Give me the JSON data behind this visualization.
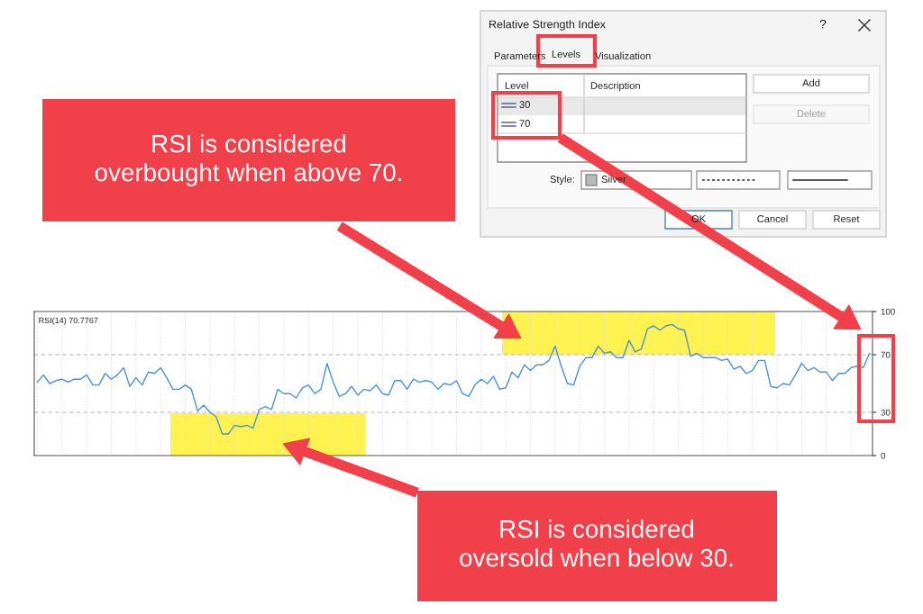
{
  "chart_data": {
    "type": "line",
    "title": "RSI(14) 70.7767",
    "categories": [
      null,
      null,
      null,
      null,
      null,
      null,
      null,
      null,
      null,
      null,
      null,
      null,
      null,
      null,
      null,
      null,
      null,
      null,
      null,
      null,
      null,
      null,
      null,
      null,
      null,
      null,
      null,
      null,
      null,
      null,
      null,
      null,
      null,
      null,
      null,
      null,
      null,
      null,
      null,
      null,
      null,
      null,
      null,
      null,
      null,
      null,
      null,
      null,
      null,
      null,
      null,
      null,
      null,
      null,
      null,
      null,
      null,
      null,
      null,
      null,
      null,
      null,
      null,
      null,
      null,
      null,
      null,
      null,
      null,
      null,
      null,
      null,
      null,
      null,
      null,
      null,
      null,
      null,
      null,
      null,
      null,
      null,
      null,
      null,
      null,
      null,
      null,
      null,
      null,
      null,
      null,
      null,
      null,
      null,
      null,
      null,
      null,
      null,
      null,
      null,
      null,
      null,
      null,
      null,
      null,
      null,
      null,
      null,
      null,
      null,
      null,
      null,
      null,
      null,
      null,
      null,
      null,
      null,
      null,
      null,
      null,
      null,
      null,
      null,
      null,
      null,
      null,
      null,
      null,
      null,
      null,
      null,
      null,
      null,
      null,
      null
    ],
    "series": [
      {
        "color": "#4a90d9",
        "values": [
          51,
          56,
          50,
          52,
          53,
          51,
          53,
          53,
          56,
          49,
          49,
          57,
          53,
          56,
          61,
          48,
          54,
          49,
          58,
          57,
          61,
          54,
          46,
          46,
          49,
          46,
          31,
          35,
          30,
          27,
          15,
          15,
          21,
          20,
          21,
          19,
          32,
          34,
          32,
          46,
          43,
          43,
          40,
          47,
          49,
          43,
          46,
          64,
          51,
          41,
          43,
          48,
          42,
          46,
          45,
          49,
          43,
          42,
          52,
          52,
          46,
          53,
          51,
          52,
          51,
          46,
          50,
          49,
          52,
          43,
          41,
          49,
          53,
          50,
          55,
          46,
          47,
          58,
          54,
          63,
          59,
          63,
          63,
          66,
          76,
          62,
          50,
          49,
          62,
          68,
          68,
          76,
          71,
          72,
          68,
          68,
          80,
          72,
          74,
          88,
          90,
          87,
          90,
          91,
          88,
          87,
          69,
          71,
          68,
          68,
          68,
          66,
          67,
          60,
          62,
          57,
          59,
          66,
          66,
          48,
          47,
          50,
          49,
          56,
          64,
          59,
          61,
          58,
          58,
          52,
          57,
          57,
          61,
          62,
          61,
          71
        ]
      }
    ],
    "ylim": [
      0,
      100
    ],
    "yticks": [
      0,
      30,
      70,
      100
    ],
    "tick_labels": "y",
    "grid": "x",
    "ref_lines": [
      {
        "axis": "y",
        "value": 30,
        "color": "#b4b4b4",
        "line_style": "dashed"
      },
      {
        "axis": "y",
        "value": 70,
        "color": "#b4b4b4",
        "line_style": "dashed"
      }
    ],
    "annotations": [
      "RSI is considered overbought when above 70.",
      "RSI is considered oversold when below 30.",
      "Relative Strength Index",
      "?",
      "Parameters",
      "Levels",
      "Visualization",
      "Level",
      "Description",
      "30",
      "70",
      "Add",
      "Delete",
      "Style:",
      "Silver",
      "OK",
      "Cancel",
      "Reset"
    ]
  }
}
